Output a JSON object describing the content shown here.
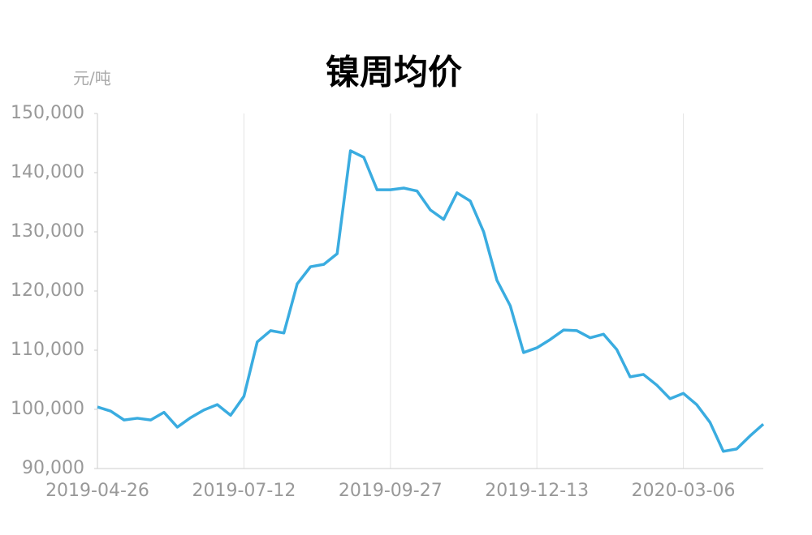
{
  "chart_data": {
    "type": "line",
    "title": "镍周均价",
    "y_unit": "元/吨",
    "categories": [
      "2019-04-26",
      null,
      null,
      null,
      null,
      null,
      null,
      null,
      null,
      null,
      null,
      "2019-07-12",
      null,
      null,
      null,
      null,
      null,
      null,
      null,
      null,
      null,
      null,
      "2019-09-27",
      null,
      null,
      null,
      null,
      null,
      null,
      null,
      null,
      null,
      null,
      "2019-12-13",
      null,
      null,
      null,
      null,
      null,
      null,
      null,
      null,
      null,
      null,
      "2020-03-06",
      null,
      null,
      null,
      null,
      null,
      null
    ],
    "series": [
      {
        "name": "镍周均价",
        "color": "#3aace0",
        "values": [
          100400,
          99700,
          98200,
          98500,
          98200,
          99500,
          97000,
          98600,
          99900,
          100800,
          99000,
          102200,
          111400,
          113300,
          112900,
          121200,
          124100,
          124500,
          126300,
          143700,
          142600,
          137100,
          137100,
          137400,
          136900,
          133700,
          132100,
          136600,
          135200,
          130000,
          121800,
          117500,
          109600,
          110400,
          111800,
          113400,
          113300,
          112100,
          112700,
          110100,
          105500,
          105900,
          104100,
          101800,
          102700,
          100800,
          97800,
          92900,
          93300,
          95500,
          97500
        ]
      }
    ],
    "ylim": [
      90000,
      150000
    ],
    "yticks": [
      {
        "value": 90000,
        "label": "90,000"
      },
      {
        "value": 100000,
        "label": "100,000"
      },
      {
        "value": 110000,
        "label": "110,000"
      },
      {
        "value": 120000,
        "label": "120,000"
      },
      {
        "value": 130000,
        "label": "130,000"
      },
      {
        "value": 140000,
        "label": "140,000"
      },
      {
        "value": 150000,
        "label": "150,000"
      }
    ],
    "grid": "x"
  }
}
